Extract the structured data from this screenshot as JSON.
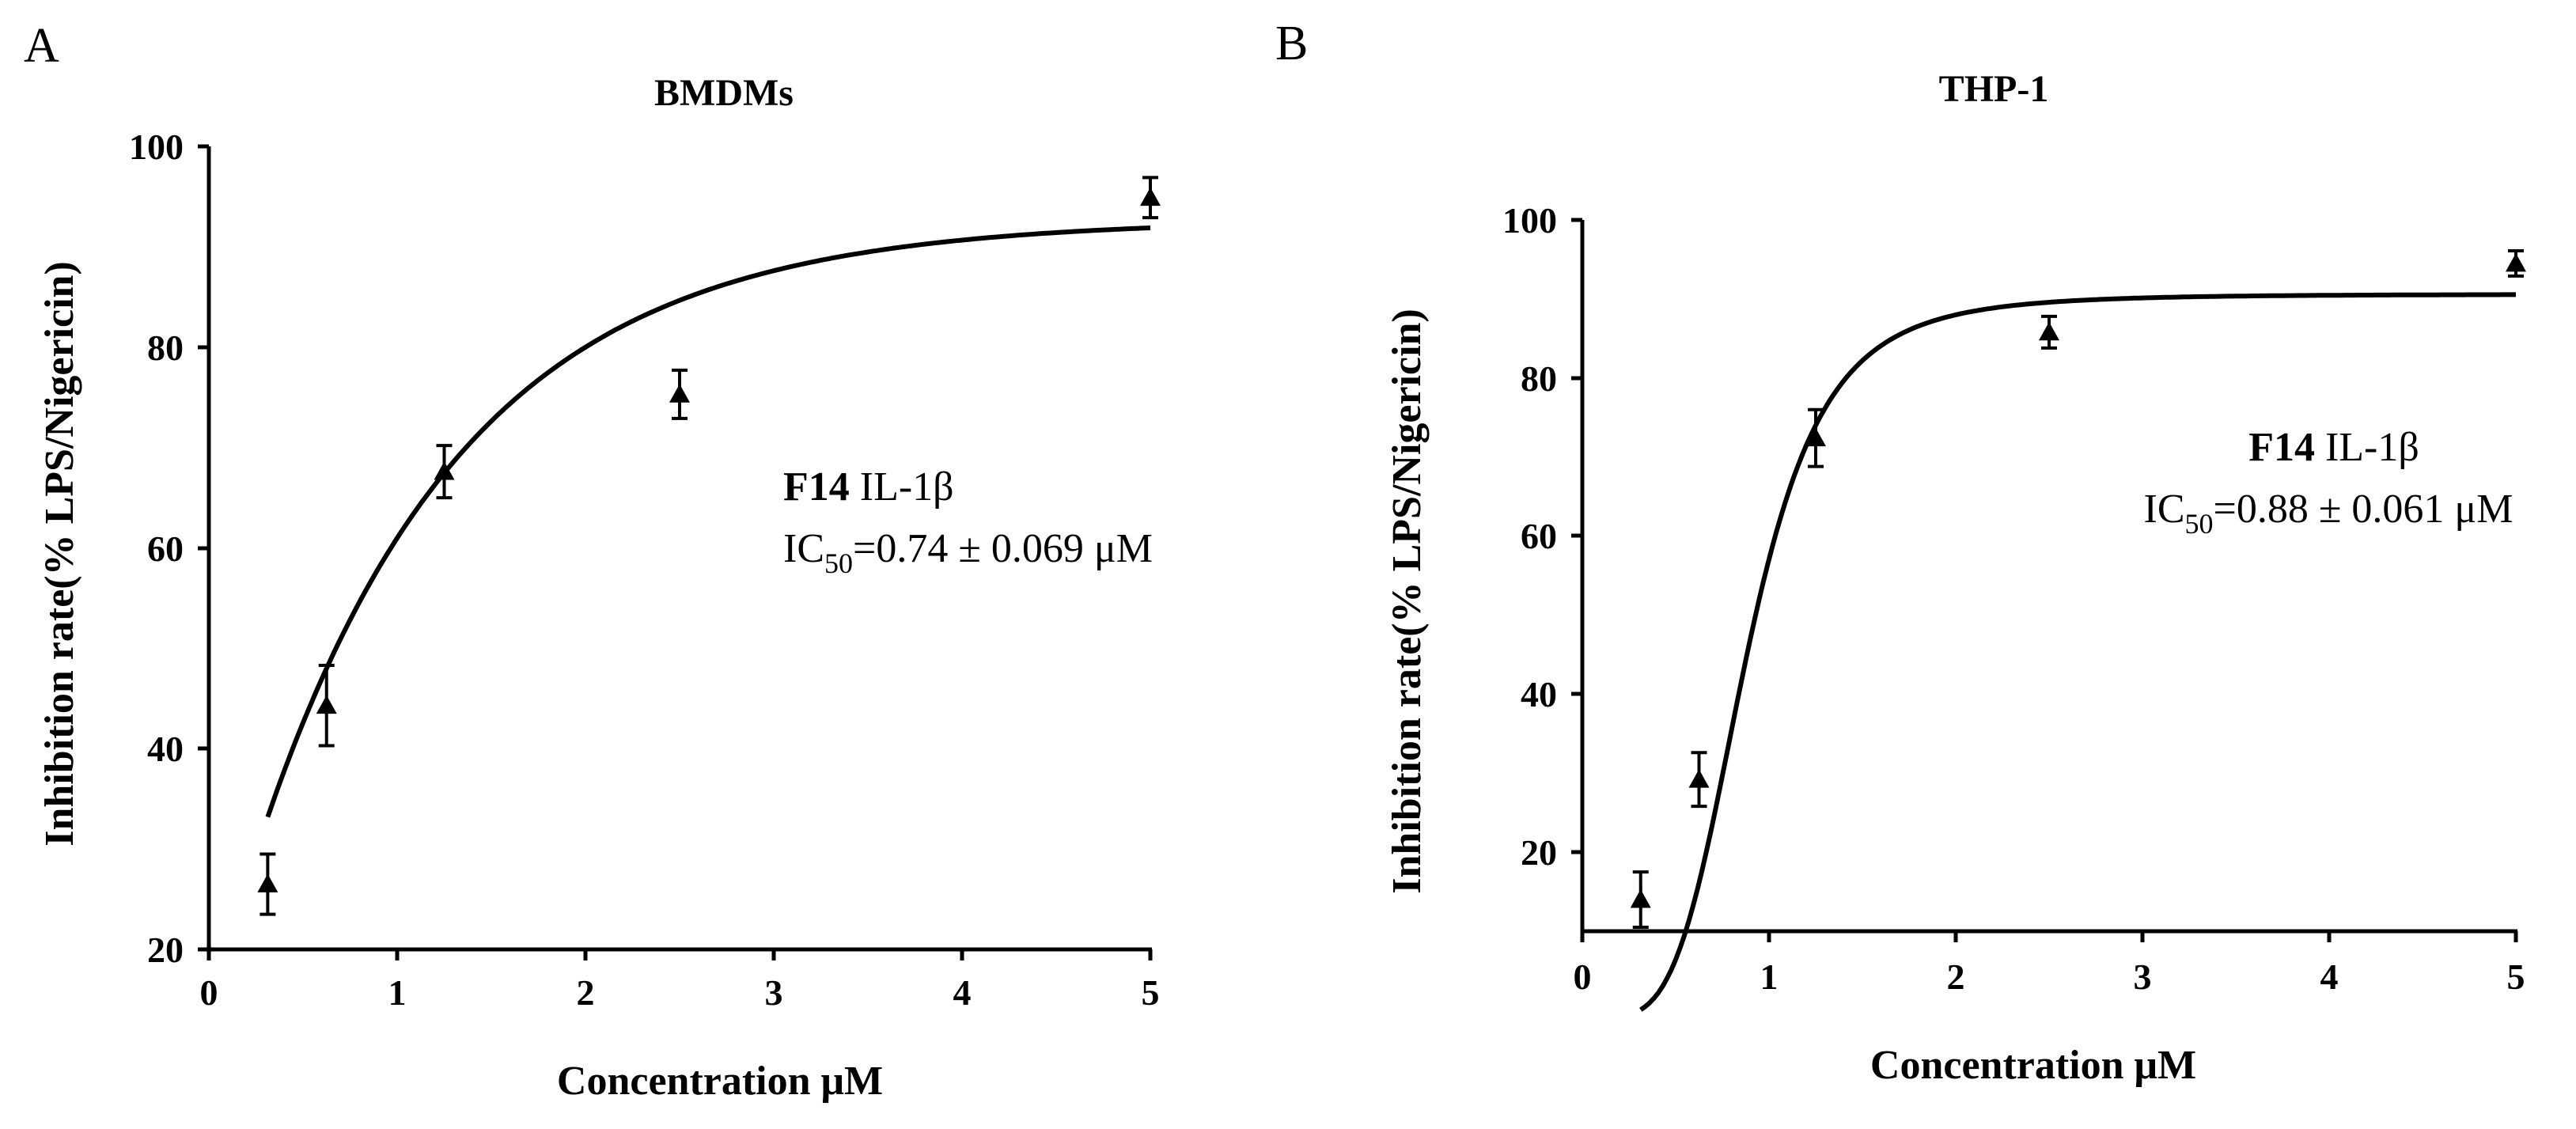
{
  "chart_data": [
    {
      "panel": "A",
      "type": "scatter",
      "title": "BMDMs",
      "xlabel": "Concentration μM",
      "ylabel": "Inhibition rate(% LPS/Nigericin)",
      "xlim": [
        0,
        5
      ],
      "ylim": [
        20,
        100
      ],
      "xticks": [
        "0",
        "1",
        "2",
        "3",
        "4",
        "5"
      ],
      "yticks": [
        "20",
        "40",
        "60",
        "80",
        "100"
      ],
      "x": [
        0.3125,
        0.625,
        1.25,
        2.5,
        5
      ],
      "values": [
        26.5,
        44.3,
        67.6,
        75.3,
        94.9
      ],
      "error": [
        3.0,
        4.0,
        2.6,
        2.4,
        2.0
      ],
      "fit": {
        "model": "exponential plateau",
        "ymin": 13.5,
        "ymax": 92.7,
        "k": 0.915
      },
      "annotation": {
        "compound": "F14",
        "marker": "IL-1β",
        "ic50_prefix": "IC",
        "ic50_sub": "50",
        "ic50_value": "=0.74 ± 0.069 μM"
      },
      "grid": false
    },
    {
      "panel": "B",
      "type": "scatter",
      "title": "THP-1",
      "xlabel": "Concentration μM",
      "ylabel": "Inhibition rate(% LPS/Nigericin)",
      "xlim": [
        0,
        5
      ],
      "ylim": [
        10,
        100
      ],
      "xticks": [
        "0",
        "1",
        "2",
        "3",
        "4",
        "5"
      ],
      "yticks": [
        "20",
        "40",
        "60",
        "80",
        "100"
      ],
      "x": [
        0.3125,
        0.625,
        1.25,
        2.5,
        5
      ],
      "values": [
        14.0,
        29.2,
        72.4,
        85.8,
        94.5
      ],
      "error": [
        3.5,
        3.4,
        3.6,
        2.0,
        1.6
      ],
      "fit": {
        "model": "sigmoid",
        "bottom": -1.0,
        "top": 90.6,
        "x50": 0.88,
        "hill": 4.3
      },
      "annotation": {
        "compound": "F14",
        "marker": "IL-1β",
        "ic50_prefix": "IC",
        "ic50_sub": "50",
        "ic50_value": "=0.88 ± 0.061 μM"
      },
      "grid": false
    }
  ]
}
